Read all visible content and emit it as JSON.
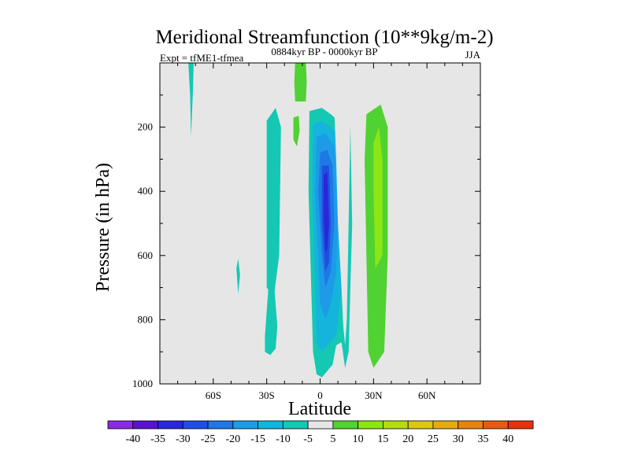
{
  "chart_data": {
    "type": "heatmap",
    "title": "Meridional Streamfunction (10**9kg/m-2)",
    "left_string": "Expt = tfME1-tfmea",
    "center_string": "0884kyr BP - 0000kyr BP",
    "right_string": "JJA",
    "xlabel": "Latitude",
    "ylabel": "Pressure (in hPa)",
    "xlim": [
      -90,
      90
    ],
    "ylim": [
      1000,
      0
    ],
    "x_ticks": [
      {
        "value": -60,
        "label": "60S"
      },
      {
        "value": -30,
        "label": "30S"
      },
      {
        "value": 0,
        "label": "0"
      },
      {
        "value": 30,
        "label": "30N"
      },
      {
        "value": 60,
        "label": "60N"
      }
    ],
    "y_ticks": [
      {
        "value": 200,
        "label": "200"
      },
      {
        "value": 400,
        "label": "400"
      },
      {
        "value": 600,
        "label": "600"
      },
      {
        "value": 800,
        "label": "800"
      },
      {
        "value": 1000,
        "label": "1000"
      }
    ],
    "background_color": "#e6e6e6",
    "levels": [
      -40,
      -35,
      -30,
      -25,
      -20,
      -15,
      -10,
      -5,
      5,
      10,
      15,
      20,
      25,
      30,
      35,
      40
    ],
    "colors": [
      "#8a2be2",
      "#5a14c8",
      "#2828d8",
      "#1e50e0",
      "#1e78e6",
      "#1e9be6",
      "#14b4dc",
      "#14c8b4",
      "#e6e6e6",
      "#50d232",
      "#8ce614",
      "#b4dc14",
      "#dcc814",
      "#e6aa14",
      "#e68214",
      "#e65a14",
      "#e6320a"
    ],
    "regions": [
      {
        "name": "upper-positive-column",
        "value": 7,
        "points": [
          [
            -14,
            0
          ],
          [
            -8,
            0
          ],
          [
            -7.5,
            60
          ],
          [
            -8,
            120
          ],
          [
            -14,
            120
          ],
          [
            -14.5,
            60
          ]
        ]
      },
      {
        "name": "upper-positive-blob",
        "value": 7,
        "points": [
          [
            -15,
            170
          ],
          [
            -12,
            165
          ],
          [
            -11.5,
            210
          ],
          [
            -13,
            260
          ],
          [
            -15,
            240
          ]
        ]
      },
      {
        "name": "right-positive-column",
        "value": 8,
        "points": [
          [
            26,
            160
          ],
          [
            34,
            130
          ],
          [
            38,
            200
          ],
          [
            38,
            600
          ],
          [
            36,
            900
          ],
          [
            30,
            950
          ],
          [
            27,
            900
          ],
          [
            26,
            600
          ],
          [
            25,
            300
          ]
        ]
      },
      {
        "name": "right-positive-core",
        "value": 12,
        "points": [
          [
            30,
            250
          ],
          [
            33,
            200
          ],
          [
            35,
            300
          ],
          [
            35,
            600
          ],
          [
            31,
            640
          ],
          [
            30,
            400
          ]
        ]
      },
      {
        "name": "left-strip",
        "value": -7,
        "points": [
          [
            -74,
            0
          ],
          [
            -71,
            0
          ],
          [
            -71.5,
            100
          ],
          [
            -72.5,
            230
          ],
          [
            -73,
            100
          ]
        ]
      },
      {
        "name": "left-spot",
        "value": -7,
        "points": [
          [
            -47,
            640
          ],
          [
            -46,
            610
          ],
          [
            -45,
            660
          ],
          [
            -46,
            720
          ]
        ]
      },
      {
        "name": "left-mid-column",
        "value": -7,
        "points": [
          [
            -30,
            180
          ],
          [
            -25,
            140
          ],
          [
            -22,
            200
          ],
          [
            -23,
            600
          ],
          [
            -26,
            730
          ],
          [
            -30,
            700
          ]
        ]
      },
      {
        "name": "lower-left-column",
        "value": -7,
        "points": [
          [
            -31,
            850
          ],
          [
            -28,
            620
          ],
          [
            -26,
            680
          ],
          [
            -24,
            820
          ],
          [
            -25,
            890
          ],
          [
            -28,
            910
          ],
          [
            -31,
            900
          ]
        ]
      },
      {
        "name": "center-shell",
        "value": -7,
        "points": [
          [
            -6,
            150
          ],
          [
            1,
            140
          ],
          [
            6,
            160
          ],
          [
            10,
            180
          ],
          [
            17,
            200
          ],
          [
            18,
            500
          ],
          [
            17,
            700
          ],
          [
            16,
            900
          ],
          [
            14,
            950
          ],
          [
            12,
            870
          ],
          [
            9,
            880
          ],
          [
            7,
            940
          ],
          [
            4,
            960
          ],
          [
            1,
            980
          ],
          [
            -2,
            970
          ],
          [
            -4,
            900
          ],
          [
            -5,
            700
          ],
          [
            -6.5,
            400
          ]
        ]
      },
      {
        "name": "center-level-1",
        "value": -12,
        "points": [
          [
            -4,
            190
          ],
          [
            1,
            180
          ],
          [
            6,
            200
          ],
          [
            12,
            230
          ],
          [
            13,
            500
          ],
          [
            12,
            700
          ],
          [
            9,
            850
          ],
          [
            4,
            880
          ],
          [
            1,
            900
          ],
          [
            -2,
            870
          ],
          [
            -3,
            650
          ],
          [
            -4.5,
            400
          ]
        ]
      },
      {
        "name": "center-level-2",
        "value": -17,
        "points": [
          [
            -2,
            230
          ],
          [
            3,
            220
          ],
          [
            8,
            260
          ],
          [
            10,
            500
          ],
          [
            9,
            650
          ],
          [
            6,
            750
          ],
          [
            3,
            800
          ],
          [
            0,
            750
          ],
          [
            -1,
            600
          ],
          [
            -3,
            400
          ]
        ]
      },
      {
        "name": "center-level-3",
        "value": -22,
        "points": [
          [
            0,
            280
          ],
          [
            4,
            270
          ],
          [
            7,
            320
          ],
          [
            8,
            500
          ],
          [
            6,
            650
          ],
          [
            3,
            700
          ],
          [
            1,
            600
          ],
          [
            -1,
            400
          ]
        ]
      },
      {
        "name": "center-level-4",
        "value": -27,
        "points": [
          [
            1,
            320
          ],
          [
            5,
            320
          ],
          [
            6,
            500
          ],
          [
            5,
            620
          ],
          [
            3,
            650
          ],
          [
            1,
            500
          ]
        ]
      },
      {
        "name": "center-core",
        "value": -33,
        "points": [
          [
            2,
            350
          ],
          [
            4,
            340
          ],
          [
            5,
            500
          ],
          [
            4,
            580
          ],
          [
            3,
            590
          ],
          [
            2,
            480
          ]
        ]
      },
      {
        "name": "gray-gap",
        "value": 0,
        "points": [
          [
            8,
            150
          ],
          [
            11,
            0
          ],
          [
            16,
            0
          ],
          [
            17,
            200
          ],
          [
            16,
            500
          ],
          [
            15,
            800
          ],
          [
            14,
            880
          ],
          [
            13,
            820
          ],
          [
            12,
            700
          ],
          [
            10,
            500
          ],
          [
            9,
            300
          ]
        ]
      }
    ]
  }
}
